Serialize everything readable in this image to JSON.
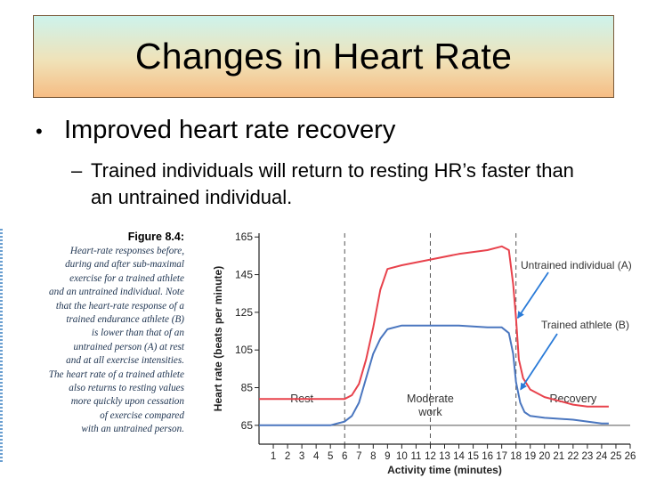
{
  "slide": {
    "title": "Changes in Heart Rate",
    "bullet": "Improved heart rate recovery",
    "bullet_marker": "•",
    "sub_marker": "–",
    "sub_bullet": "Trained individuals will return to resting HR’s faster than an untrained individual."
  },
  "caption": {
    "figure_label": "Figure 8.4:",
    "lines": [
      "Heart-rate responses before,",
      "during and after sub-maximal",
      "exercise for a trained athlete",
      "and an untrained individual. Note",
      "that the heart-rate response of a",
      "trained endurance athlete (B)",
      "is lower than that of an",
      "untrained person (A) at rest",
      "and at all exercise intensities.",
      "The heart rate of a trained athlete",
      "also returns to resting values",
      "more quickly upon cessation",
      "of exercise compared",
      "with an untrained person."
    ]
  },
  "chart_data": {
    "type": "line",
    "xlabel": "Activity time (minutes)",
    "ylabel": "Heart rate (beats per minute)",
    "xlim": [
      0,
      26
    ],
    "ylim": [
      55,
      167
    ],
    "x_ticks": [
      1,
      2,
      3,
      4,
      5,
      6,
      7,
      8,
      9,
      10,
      11,
      12,
      13,
      14,
      15,
      16,
      17,
      18,
      19,
      20,
      21,
      22,
      23,
      24,
      25,
      26
    ],
    "y_ticks": [
      65,
      85,
      105,
      125,
      145,
      165
    ],
    "reference_y": 65,
    "phase_lines": [
      6,
      12,
      18
    ],
    "phases": [
      {
        "label": "Rest",
        "x": 3
      },
      {
        "label": "Moderate",
        "label2": "work",
        "x": 12
      },
      {
        "label": "Recovery",
        "x": 22
      }
    ],
    "series": [
      {
        "name": "Untrained individual (A)",
        "color": "#e8424c",
        "points": [
          [
            0,
            79
          ],
          [
            6,
            79
          ],
          [
            6.5,
            81
          ],
          [
            7,
            87
          ],
          [
            7.5,
            100
          ],
          [
            8,
            117
          ],
          [
            8.5,
            137
          ],
          [
            9,
            148
          ],
          [
            10,
            150
          ],
          [
            12,
            153
          ],
          [
            14,
            156
          ],
          [
            16,
            158
          ],
          [
            17,
            160
          ],
          [
            17.5,
            158
          ],
          [
            17.8,
            140
          ],
          [
            18,
            122
          ],
          [
            18.2,
            100
          ],
          [
            18.5,
            90
          ],
          [
            19,
            84
          ],
          [
            20,
            80
          ],
          [
            21,
            78
          ],
          [
            22,
            76
          ],
          [
            23,
            75
          ],
          [
            24,
            75
          ],
          [
            24.5,
            75
          ]
        ]
      },
      {
        "name": "Trained athlete (B)",
        "color": "#4a76bf",
        "points": [
          [
            0,
            65
          ],
          [
            5,
            65
          ],
          [
            6,
            67
          ],
          [
            6.5,
            70
          ],
          [
            7,
            77
          ],
          [
            7.5,
            90
          ],
          [
            8,
            103
          ],
          [
            8.5,
            111
          ],
          [
            9,
            116
          ],
          [
            10,
            118
          ],
          [
            12,
            118
          ],
          [
            14,
            118
          ],
          [
            16,
            117
          ],
          [
            17,
            117
          ],
          [
            17.5,
            114
          ],
          [
            17.8,
            103
          ],
          [
            18,
            88
          ],
          [
            18.3,
            77
          ],
          [
            18.6,
            72
          ],
          [
            19,
            70
          ],
          [
            20,
            69
          ],
          [
            22,
            68
          ],
          [
            24,
            66
          ],
          [
            24.5,
            66
          ]
        ]
      }
    ],
    "annotations": [
      {
        "text": "Untrained individual (A)",
        "points_to": [
          18,
          122
        ]
      },
      {
        "text": "Trained athlete (B)",
        "points_to": [
          18.2,
          84
        ]
      }
    ]
  }
}
